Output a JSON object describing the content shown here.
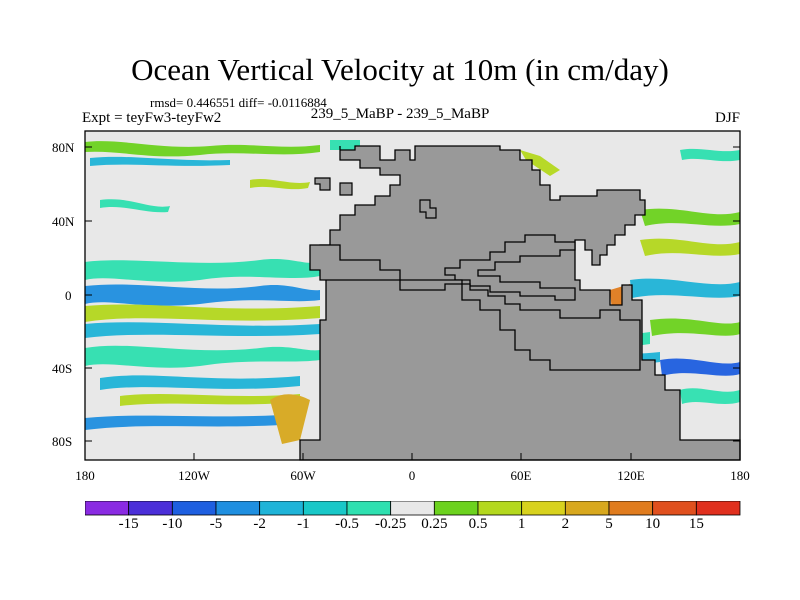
{
  "title": "Ocean Vertical Velocity at 10m (in cm/day)",
  "stats": "rmsd= 0.446551 diff= -0.0116884",
  "expt": "Expt = teyFw3-teyFw2",
  "period": "239_5_MaBP - 239_5_MaBP",
  "season": "DJF",
  "lat_labels": [
    "80N",
    "40N",
    "0",
    "40S",
    "80S"
  ],
  "lon_labels": [
    "180",
    "120W",
    "60W",
    "0",
    "60E",
    "120E",
    "180"
  ],
  "colorbar": {
    "labels": [
      "-15",
      "-10",
      "-5",
      "-2",
      "-1",
      "-0.5",
      "-0.25",
      "0.25",
      "0.5",
      "1",
      "2",
      "5",
      "10",
      "15"
    ],
    "colors": [
      "#8a2be2",
      "#4b2fd8",
      "#1e5fe0",
      "#1f8fe0",
      "#1fb4d8",
      "#19c8c8",
      "#2ee0b0",
      "#e8e8e8",
      "#6cd21e",
      "#b4d81e",
      "#d8d21e",
      "#d8a81e",
      "#e07c1e",
      "#e0501e",
      "#e0301e"
    ]
  },
  "colors": {
    "land": "#999999",
    "ocean_neutral": "#e8e8e8"
  }
}
